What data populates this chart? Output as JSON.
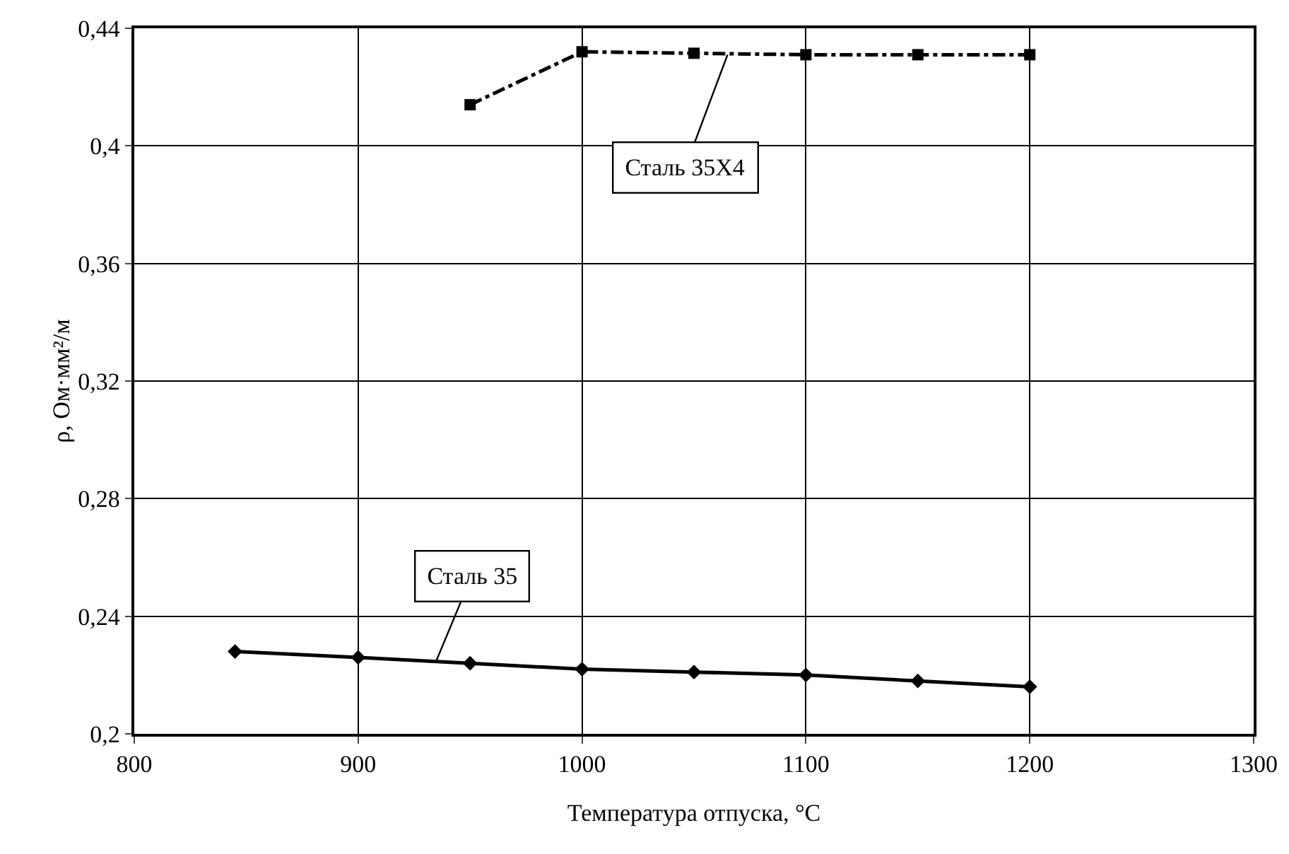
{
  "chart_data": {
    "type": "line",
    "xlabel": "Температура отпуска, °C",
    "ylabel": "ρ, Ом·мм²/м",
    "xlim": [
      800,
      1300
    ],
    "xticks": [
      800,
      900,
      1000,
      1100,
      1200,
      1300
    ],
    "ylim": [
      0.2,
      0.44
    ],
    "yticks": [
      {
        "value": 0.2,
        "label": "0,2"
      },
      {
        "value": 0.24,
        "label": "0,24"
      },
      {
        "value": 0.28,
        "label": "0,28"
      },
      {
        "value": 0.32,
        "label": "0,32"
      },
      {
        "value": 0.36,
        "label": "0,36"
      },
      {
        "value": 0.4,
        "label": "0,4"
      },
      {
        "value": 0.44,
        "label": "0,44"
      }
    ],
    "grid": true,
    "legend": false,
    "series": [
      {
        "color": "#000000",
        "marker": "diamond",
        "line_style": "solid",
        "x": [
          845,
          900,
          950,
          1000,
          1050,
          1100,
          1150,
          1200
        ],
        "values": [
          0.228,
          0.226,
          0.224,
          0.222,
          0.221,
          0.22,
          0.218,
          0.216
        ]
      },
      {
        "color": "#000000",
        "marker": "square",
        "line_style": "dashed",
        "x": [
          950,
          1000,
          1050,
          1100,
          1150,
          1200
        ],
        "values": [
          0.414,
          0.432,
          0.4315,
          0.431,
          0.431,
          0.431
        ]
      }
    ],
    "annotations": [
      {
        "text": "Сталь 35",
        "x": 935,
        "y": 0.225
      },
      {
        "text": "Сталь 35X4",
        "x": 1065,
        "y": 0.431
      }
    ]
  }
}
